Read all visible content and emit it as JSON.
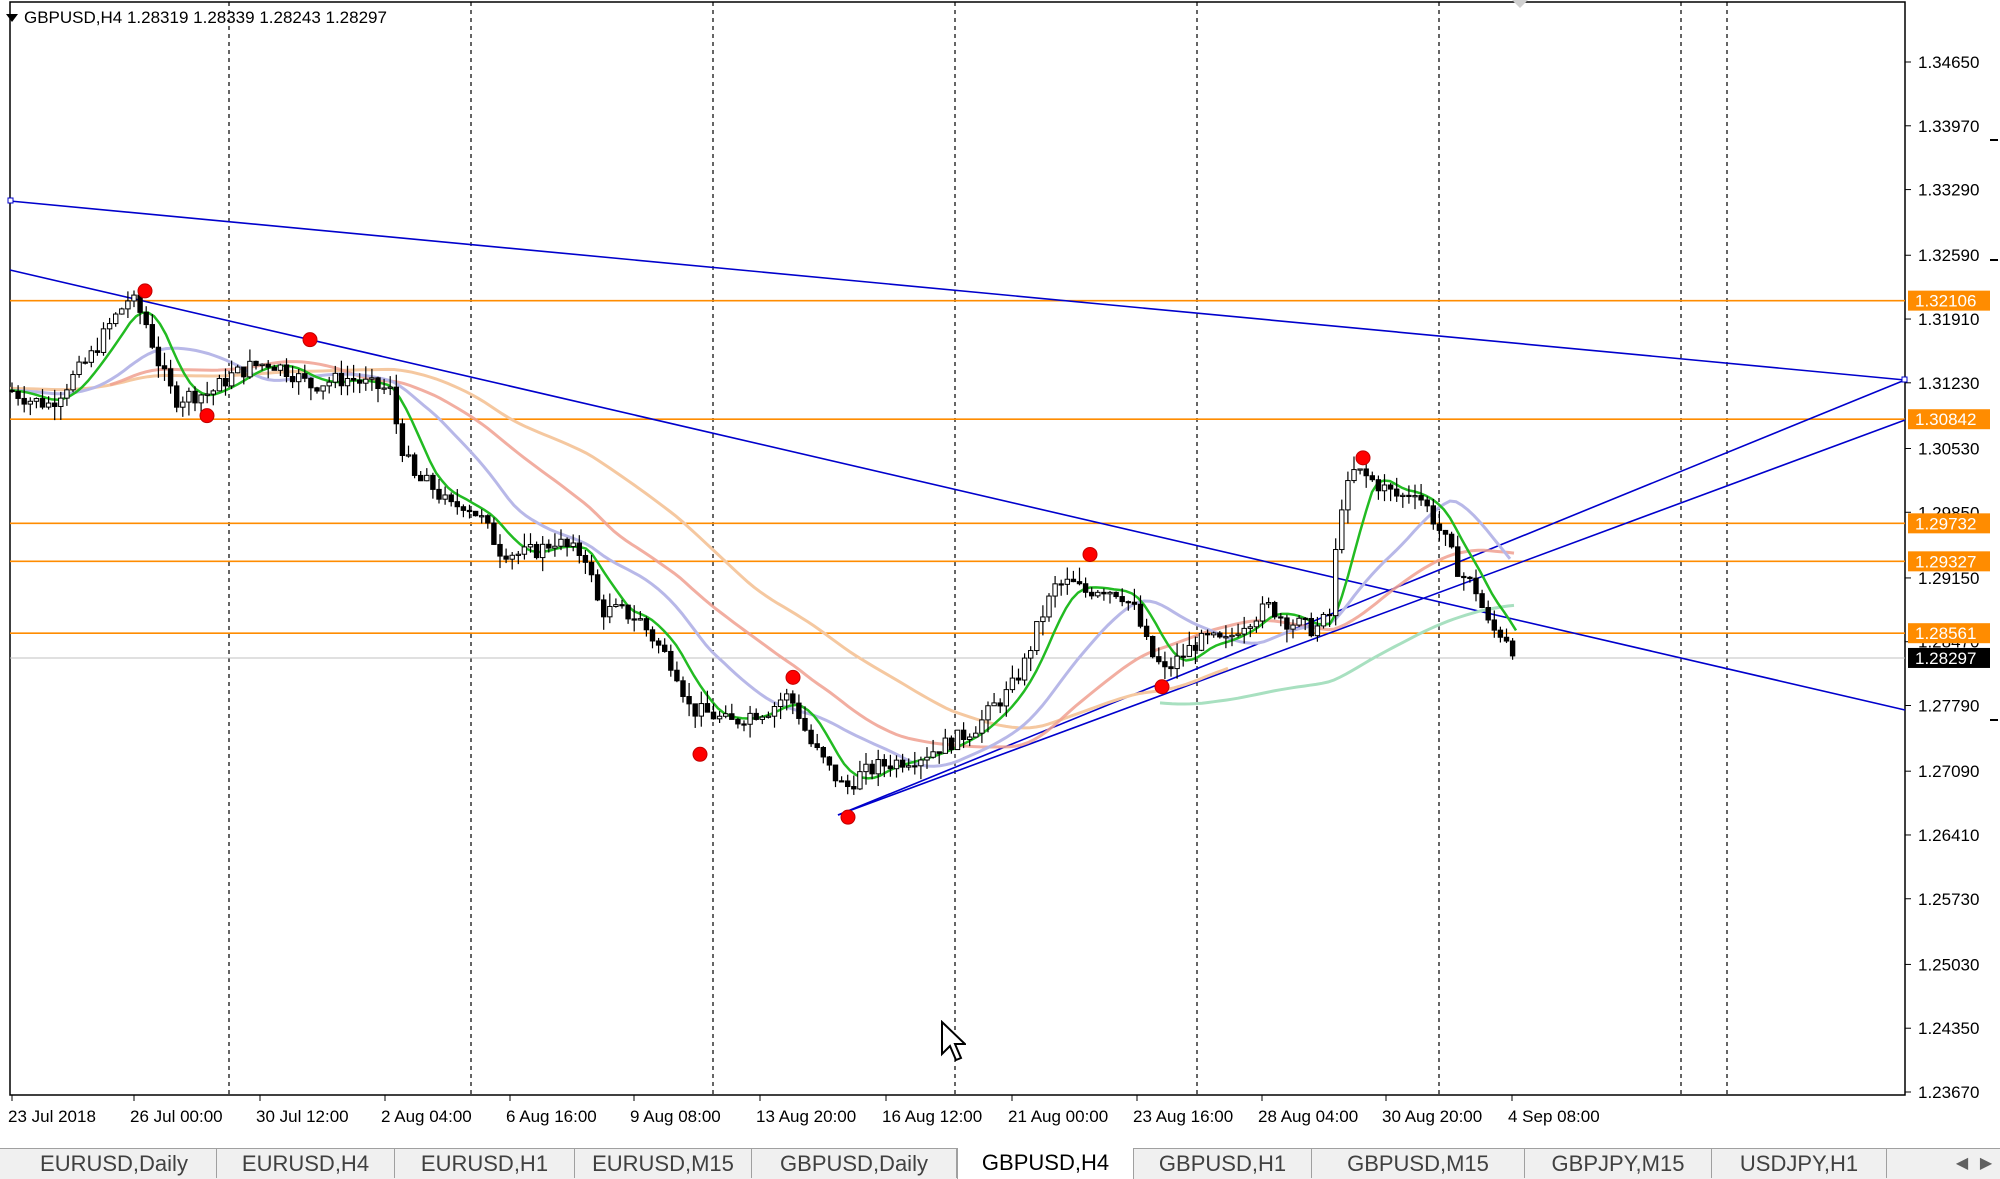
{
  "header": {
    "text": "GBPUSD,H4  1.28319 1.28339 1.28243 1.28297"
  },
  "colors": {
    "background": "#ffffff",
    "candle": "#000000",
    "trendline": "#0000cc",
    "hline": "#ff8c00",
    "ma_fast": "#22bb22",
    "ma_mid": "#b8b8e8",
    "ma_slow": "#f0a090",
    "ma_slowest": "#f5c8a0",
    "ma_long": "#a8e0c0",
    "fractal": "#ff0000",
    "grid": "#000000"
  },
  "price_axis": {
    "labels": [
      "1.34650",
      "1.33970",
      "1.33290",
      "1.32590",
      "1.31910",
      "1.31230",
      "1.30530",
      "1.29850",
      "1.29150",
      "1.28470",
      "1.27790",
      "1.27090",
      "1.26410",
      "1.25730",
      "1.25030",
      "1.24350",
      "1.23670"
    ],
    "min": 1.2367,
    "max": 1.3465
  },
  "price_tags": [
    {
      "value": "1.32106",
      "kind": "level"
    },
    {
      "value": "1.30842",
      "kind": "level"
    },
    {
      "value": "1.29732",
      "kind": "level"
    },
    {
      "value": "1.29327",
      "kind": "level"
    },
    {
      "value": "1.28561",
      "kind": "level"
    },
    {
      "value": "1.28297",
      "kind": "current"
    }
  ],
  "time_axis": {
    "labels": [
      "23 Jul 2018",
      "26 Jul 00:00",
      "30 Jul 12:00",
      "2 Aug 04:00",
      "6 Aug 16:00",
      "9 Aug 08:00",
      "13 Aug 20:00",
      "16 Aug 12:00",
      "21 Aug 00:00",
      "23 Aug 16:00",
      "28 Aug 04:00",
      "30 Aug 20:00",
      "4 Sep 08:00"
    ]
  },
  "tabs": [
    {
      "label": "EURUSD,Daily",
      "active": false
    },
    {
      "label": "EURUSD,H4",
      "active": false
    },
    {
      "label": "EURUSD,H1",
      "active": false
    },
    {
      "label": "EURUSD,M15",
      "active": false
    },
    {
      "label": "GBPUSD,Daily",
      "active": false
    },
    {
      "label": "GBPUSD,H4",
      "active": true
    },
    {
      "label": "GBPUSD,H1",
      "active": false
    },
    {
      "label": "GBPUSD,M15",
      "active": false
    },
    {
      "label": "GBPJPY,M15",
      "active": false
    },
    {
      "label": "USDJPY,H1",
      "active": false
    }
  ],
  "chart_data": {
    "type": "candlestick",
    "symbol": "GBPUSD",
    "timeframe": "H4",
    "ylim": [
      1.2367,
      1.3465
    ],
    "price_path": [
      [
        0,
        1.3115
      ],
      [
        20,
        1.3105
      ],
      [
        40,
        1.31
      ],
      [
        60,
        1.3125
      ],
      [
        80,
        1.315
      ],
      [
        100,
        1.3185
      ],
      [
        120,
        1.3215
      ],
      [
        135,
        1.319
      ],
      [
        150,
        1.314
      ],
      [
        165,
        1.3105
      ],
      [
        180,
        1.311
      ],
      [
        200,
        1.3112
      ],
      [
        220,
        1.313
      ],
      [
        240,
        1.314
      ],
      [
        260,
        1.3145
      ],
      [
        280,
        1.3135
      ],
      [
        300,
        1.312
      ],
      [
        320,
        1.3125
      ],
      [
        340,
        1.3128
      ],
      [
        360,
        1.312
      ],
      [
        380,
        1.3115
      ],
      [
        390,
        1.306
      ],
      [
        405,
        1.302
      ],
      [
        420,
        1.3015
      ],
      [
        440,
        1.299
      ],
      [
        455,
        1.2995
      ],
      [
        470,
        1.298
      ],
      [
        490,
        1.2945
      ],
      [
        510,
        1.294
      ],
      [
        530,
        1.2945
      ],
      [
        545,
        1.2955
      ],
      [
        560,
        1.2945
      ],
      [
        575,
        1.294
      ],
      [
        590,
        1.288
      ],
      [
        610,
        1.288
      ],
      [
        630,
        1.287
      ],
      [
        650,
        1.284
      ],
      [
        665,
        1.282
      ],
      [
        680,
        1.2775
      ],
      [
        700,
        1.277
      ],
      [
        720,
        1.276
      ],
      [
        740,
        1.277
      ],
      [
        760,
        1.2775
      ],
      [
        775,
        1.279
      ],
      [
        785,
        1.278
      ],
      [
        800,
        1.274
      ],
      [
        820,
        1.271
      ],
      [
        835,
        1.269
      ],
      [
        850,
        1.2705
      ],
      [
        870,
        1.2715
      ],
      [
        890,
        1.272
      ],
      [
        910,
        1.2725
      ],
      [
        930,
        1.2735
      ],
      [
        950,
        1.2745
      ],
      [
        970,
        1.276
      ],
      [
        985,
        1.278
      ],
      [
        1000,
        1.2795
      ],
      [
        1015,
        1.2825
      ],
      [
        1030,
        1.287
      ],
      [
        1045,
        1.2905
      ],
      [
        1060,
        1.291
      ],
      [
        1075,
        1.29
      ],
      [
        1090,
        1.2905
      ],
      [
        1110,
        1.29
      ],
      [
        1125,
        1.288
      ],
      [
        1140,
        1.2835
      ],
      [
        1155,
        1.2815
      ],
      [
        1170,
        1.283
      ],
      [
        1185,
        1.2845
      ],
      [
        1200,
        1.285
      ],
      [
        1215,
        1.2845
      ],
      [
        1230,
        1.2865
      ],
      [
        1245,
        1.2875
      ],
      [
        1260,
        1.2885
      ],
      [
        1275,
        1.287
      ],
      [
        1290,
        1.2865
      ],
      [
        1305,
        1.286
      ],
      [
        1320,
        1.2875
      ],
      [
        1330,
        1.299
      ],
      [
        1345,
        1.303
      ],
      [
        1360,
        1.302
      ],
      [
        1375,
        1.301
      ],
      [
        1390,
        1.3
      ],
      [
        1405,
        1.301
      ],
      [
        1420,
        1.2985
      ],
      [
        1435,
        1.2955
      ],
      [
        1450,
        1.292
      ],
      [
        1465,
        1.2905
      ],
      [
        1480,
        1.286
      ],
      [
        1495,
        1.2855
      ],
      [
        1508,
        1.283
      ]
    ],
    "series": [
      {
        "name": "",
        "values_note": ""
      }
    ],
    "fractals": [
      {
        "x": 135,
        "price": 1.3221,
        "kind": "up"
      },
      {
        "x": 197,
        "price": 1.3088,
        "kind": "down"
      },
      {
        "x": 300,
        "price": 1.3169,
        "kind": "up"
      },
      {
        "x": 690,
        "price": 1.2727,
        "kind": "down"
      },
      {
        "x": 783,
        "price": 1.2809,
        "kind": "up"
      },
      {
        "x": 838,
        "price": 1.266,
        "kind": "down"
      },
      {
        "x": 1080,
        "price": 1.294,
        "kind": "up"
      },
      {
        "x": 1152,
        "price": 1.2799,
        "kind": "down"
      },
      {
        "x": 1353,
        "price": 1.3043,
        "kind": "up"
      }
    ]
  }
}
